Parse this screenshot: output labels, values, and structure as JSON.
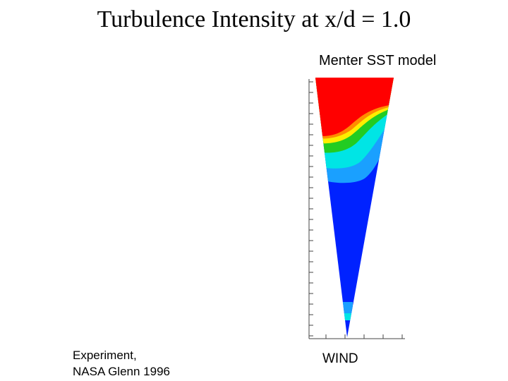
{
  "title": "Turbulence Intensity at x/d = 1.0",
  "model_label": "Menter SST model",
  "source_line1": "Experiment,",
  "source_line2": "NASA Glenn 1996",
  "case_label": "WIND",
  "colors": {
    "high": "#ff0000",
    "orange": "#ff8c00",
    "yellow": "#ffee00",
    "green": "#22cc22",
    "cyan": "#00e5e5",
    "sky": "#1aa0ff",
    "low": "#0022ff"
  }
}
